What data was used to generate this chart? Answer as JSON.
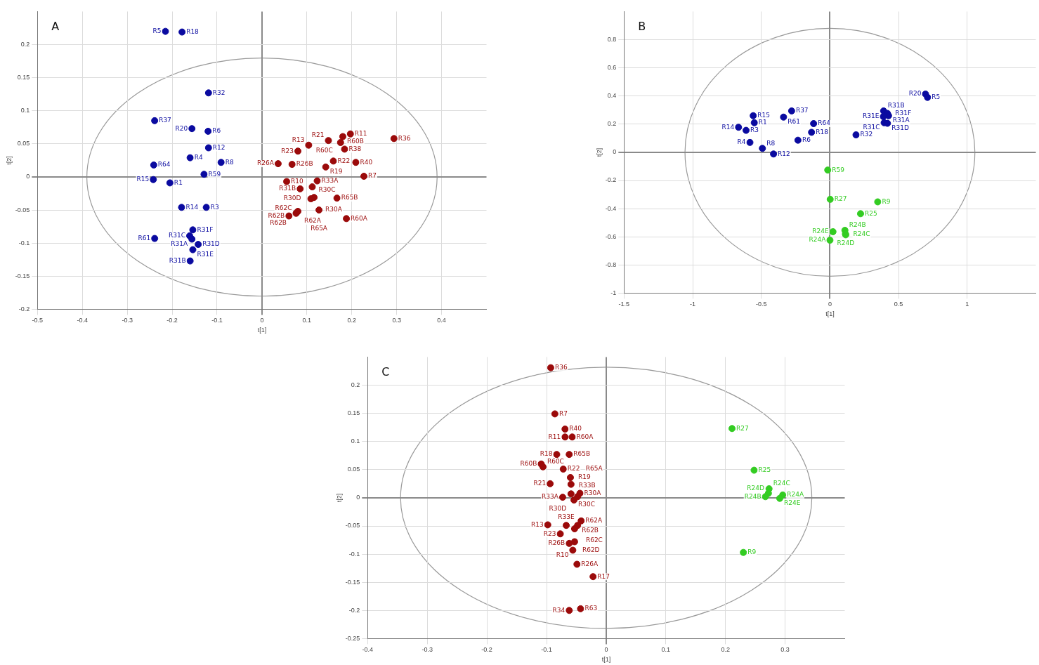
{
  "chart_data": [
    {
      "type": "scatter",
      "title": "A",
      "xlabel": "t[1]",
      "ylabel": "t[2]",
      "xlim": [
        -0.5,
        0.5
      ],
      "ylim": [
        -0.2,
        0.25
      ],
      "xticks": [
        -0.5,
        -0.4,
        -0.3,
        -0.2,
        -0.1,
        0,
        0.1,
        0.2,
        0.3,
        0.4
      ],
      "yticks": [
        -0.2,
        -0.15,
        -0.1,
        -0.05,
        0,
        0.05,
        0.1,
        0.15,
        0.2
      ],
      "grid": true,
      "legend": false,
      "marker": "circle",
      "series": [
        {
          "color": "#0a0aa0",
          "x": [
            -0.215,
            -0.178,
            -0.119,
            -0.239,
            -0.156,
            -0.12,
            -0.119,
            -0.16,
            -0.091,
            -0.241,
            -0.129,
            -0.242,
            -0.205,
            -0.179,
            -0.124,
            -0.154,
            -0.161,
            -0.156,
            -0.239,
            -0.142,
            -0.154,
            -0.16
          ],
          "values": [
            0.22,
            0.219,
            0.127,
            0.085,
            0.073,
            0.069,
            0.044,
            0.029,
            0.022,
            0.018,
            0.004,
            -0.004,
            -0.009,
            -0.046,
            -0.046,
            -0.08,
            -0.089,
            -0.094,
            -0.093,
            -0.102,
            -0.11,
            -0.127
          ],
          "value_labels": [
            "R5",
            "R18",
            "R32",
            "R37",
            "R20",
            "R6",
            "R12",
            "R4",
            "R8",
            "R64",
            "R59",
            "R15",
            "R1",
            "R14",
            "R3",
            "R31F",
            "R31C",
            "R31A",
            "R61",
            "R31D",
            "R31E",
            "R31B"
          ]
        },
        {
          "color": "#9b0a0a",
          "x": [
            0.294,
            0.197,
            0.18,
            0.148,
            0.175,
            0.104,
            0.184,
            0.08,
            0.036,
            0.067,
            0.159,
            0.209,
            0.142,
            0.227,
            0.055,
            0.123,
            0.112,
            0.085,
            0.109,
            0.116,
            0.167,
            0.077,
            0.06,
            0.076,
            0.08,
            0.127,
            0.188
          ],
          "values": [
            0.058,
            0.065,
            0.061,
            0.055,
            0.052,
            0.048,
            0.042,
            0.039,
            0.02,
            0.019,
            0.024,
            0.022,
            0.015,
            0.001,
            -0.007,
            -0.006,
            -0.015,
            -0.018,
            -0.033,
            -0.031,
            -0.032,
            -0.054,
            -0.059,
            -0.055,
            -0.052,
            -0.05,
            -0.063
          ],
          "value_labels": [
            "R36",
            "R11",
            "R60B",
            "R21",
            "R60C",
            "R13",
            "R38",
            "R23",
            "R26A",
            "R26B",
            "R22",
            "R40",
            "R19",
            "R7",
            "R10",
            "R33A",
            "R30D",
            "R31B",
            "R30C",
            "R30A",
            "R65B",
            "R62A",
            "R62B",
            "R62C",
            "R62B",
            "R65A",
            "R60A"
          ]
        }
      ]
    },
    {
      "type": "scatter",
      "title": "B",
      "xlabel": "t[1]",
      "ylabel": "t[2]",
      "xlim": [
        -1.5,
        1.5
      ],
      "ylim": [
        -1,
        1
      ],
      "xticks": [
        -1.5,
        -1,
        -0.5,
        0,
        0.5,
        1
      ],
      "yticks": [
        -1,
        -0.8,
        -0.6,
        -0.4,
        -0.2,
        0,
        0.2,
        0.4,
        0.6,
        0.8
      ],
      "grid": true,
      "legend": false,
      "marker": "circle",
      "series": [
        {
          "color": "#0a0aa0",
          "x": [
            0.696,
            0.711,
            0.391,
            0.419,
            0.427,
            0.389,
            0.419,
            0.395,
            0.19,
            -0.559,
            -0.338,
            -0.279,
            -0.551,
            -0.666,
            -0.611,
            -0.119,
            -0.134,
            -0.233,
            -0.583,
            -0.492,
            -0.411
          ],
          "values": [
            0.414,
            0.39,
            0.294,
            0.276,
            0.26,
            0.254,
            0.206,
            0.21,
            0.124,
            0.26,
            0.25,
            0.294,
            0.21,
            0.178,
            0.156,
            0.204,
            0.142,
            0.086,
            0.07,
            0.028,
            -0.012
          ],
          "value_labels": [
            "R20",
            "R5",
            "R31B",
            "R31F",
            "R31A",
            "R31E",
            "R31D",
            "R31C",
            "R32",
            "R15",
            "R61",
            "R37",
            "R1",
            "R14",
            "R3",
            "R64",
            "R18",
            "R6",
            "R4",
            "R8",
            "R12"
          ]
        },
        {
          "color": "#33cc22",
          "x": [
            -0.016,
            0.002,
            0.348,
            0.223,
            0.022,
            0.109,
            0.113,
            0.115,
            0
          ],
          "values": [
            -0.126,
            -0.334,
            -0.352,
            -0.436,
            -0.564,
            -0.554,
            -0.58,
            -0.586,
            -0.624
          ],
          "value_labels": [
            "R59",
            "R27",
            "R9",
            "R25",
            "R24E",
            "R24B",
            "R24C",
            "R24D",
            "R24A"
          ]
        }
      ]
    },
    {
      "type": "scatter",
      "title": "C",
      "xlabel": "t[1]",
      "ylabel": "t[2]",
      "xlim": [
        -0.4,
        0.4
      ],
      "ylim": [
        -0.25,
        0.25
      ],
      "xticks": [
        -0.4,
        -0.3,
        -0.2,
        -0.1,
        0,
        0.1,
        0.2,
        0.3
      ],
      "yticks": [
        -0.25,
        -0.2,
        -0.15,
        -0.1,
        -0.05,
        0,
        0.05,
        0.1,
        0.15,
        0.2
      ],
      "grid": true,
      "legend": false,
      "marker": "circle",
      "series": [
        {
          "color": "#9b0a0a",
          "x": [
            -0.093,
            -0.086,
            -0.069,
            -0.057,
            -0.069,
            -0.083,
            -0.062,
            -0.109,
            -0.106,
            -0.072,
            -0.06,
            -0.059,
            -0.094,
            -0.044,
            -0.059,
            -0.073,
            -0.054,
            -0.048,
            -0.042,
            -0.067,
            -0.048,
            -0.053,
            -0.098,
            -0.077,
            -0.062,
            -0.053,
            -0.056,
            -0.049,
            -0.022,
            -0.062,
            -0.043
          ],
          "values": [
            0.231,
            0.149,
            0.122,
            0.108,
            0.108,
            0.077,
            0.077,
            0.06,
            0.055,
            0.051,
            0.036,
            0.024,
            0.025,
            0.008,
            0.007,
            0.001,
            -0.004,
            0.002,
            -0.041,
            -0.049,
            -0.049,
            -0.055,
            -0.048,
            -0.064,
            -0.081,
            -0.078,
            -0.093,
            -0.118,
            -0.14,
            -0.2,
            -0.197
          ],
          "value_labels": [
            "R36",
            "R7",
            "R40",
            "R60A",
            "R11",
            "R18",
            "R65B",
            "R60B",
            "R60C",
            "R22",
            "R19",
            "R65A",
            "R21",
            "R30A",
            "R33B",
            "R33A",
            "R30C",
            "R30D",
            "R62A",
            "R33E",
            "R62B",
            "R62C",
            "R13",
            "R23",
            "R26B",
            "R62D",
            "R10",
            "R26A",
            "R17",
            "R34",
            "R63"
          ]
        },
        {
          "color": "#33cc22",
          "x": [
            0.211,
            0.248,
            0.273,
            0.272,
            0.267,
            0.296,
            0.291,
            0.23
          ],
          "values": [
            0.123,
            0.049,
            0.016,
            0.008,
            0.002,
            0.005,
            -0.001,
            -0.097
          ],
          "value_labels": [
            "R27",
            "R25",
            "R24C",
            "R24D",
            "R24B",
            "R24A",
            "R24E",
            "R9"
          ]
        }
      ]
    }
  ]
}
